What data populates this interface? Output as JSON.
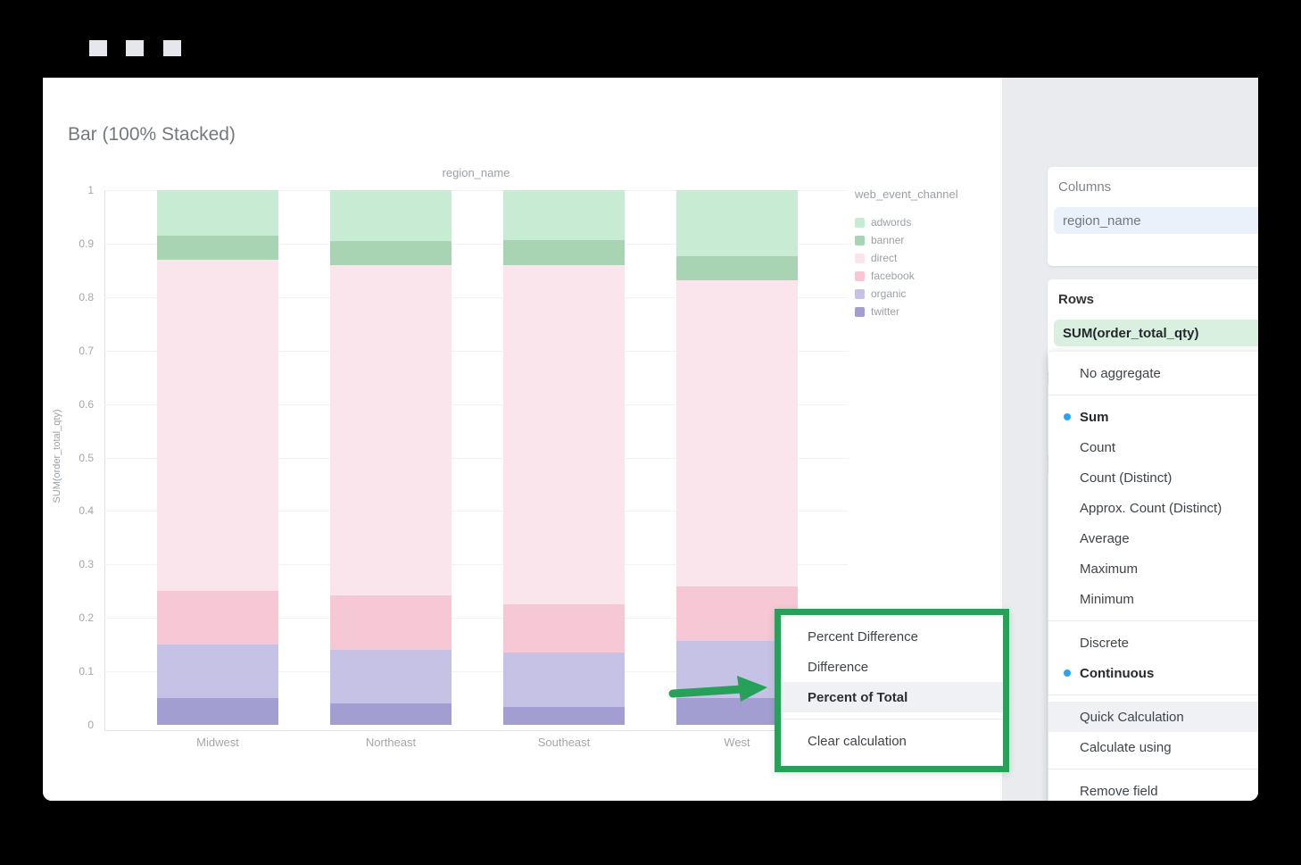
{
  "window": {
    "controls": [
      "square",
      "square",
      "square"
    ]
  },
  "chart_data": {
    "type": "bar",
    "stacked": true,
    "normalized": true,
    "title": "Bar (100% Stacked)",
    "plot_title": "region_name",
    "xlabel": "region_name",
    "ylabel": "SUM(order_total_qty)",
    "categories": [
      "Midwest",
      "Northeast",
      "Southeast",
      "West"
    ],
    "y_ticks": [
      0,
      0.1,
      0.2,
      0.3,
      0.4,
      0.5,
      0.6,
      0.7,
      0.8,
      0.9,
      1
    ],
    "y_tick_labels": [
      "0",
      "0.1",
      "0.2",
      "0.3",
      "0.4",
      "0.5",
      "0.6",
      "0.7",
      "0.8",
      "0.9",
      "1"
    ],
    "ylim": [
      0,
      1
    ],
    "grid": true,
    "legend_position": "right",
    "legend_title": "web_event_channel",
    "series": [
      {
        "name": "adwords",
        "color": "#c8ecd3",
        "values": [
          0.085,
          0.095,
          0.094,
          0.124
        ]
      },
      {
        "name": "banner",
        "color": "#a9d4b4",
        "values": [
          0.045,
          0.045,
          0.046,
          0.044
        ]
      },
      {
        "name": "direct",
        "color": "#fbe5ec",
        "values": [
          0.62,
          0.618,
          0.635,
          0.573
        ]
      },
      {
        "name": "facebook",
        "color": "#f6c7d4",
        "values": [
          0.1,
          0.102,
          0.09,
          0.102
        ]
      },
      {
        "name": "organic",
        "color": "#c6c2e6",
        "values": [
          0.1,
          0.1,
          0.102,
          0.107
        ]
      },
      {
        "name": "twitter",
        "color": "#a39ed1",
        "values": [
          0.05,
          0.04,
          0.033,
          0.05
        ]
      }
    ]
  },
  "sidebar": {
    "columns_section": {
      "label": "Columns",
      "field_value": "region_name"
    },
    "rows_section": {
      "label": "Rows",
      "field_value": "SUM(order_total_qty)"
    },
    "aggregate_menu": {
      "groups": [
        {
          "items": [
            {
              "label": "No aggregate"
            }
          ]
        },
        {
          "items": [
            {
              "label": "Sum",
              "selected": true
            },
            {
              "label": "Count"
            },
            {
              "label": "Count (Distinct)"
            },
            {
              "label": "Approx. Count (Distinct)"
            },
            {
              "label": "Average"
            },
            {
              "label": "Maximum"
            },
            {
              "label": "Minimum"
            }
          ]
        },
        {
          "items": [
            {
              "label": "Discrete"
            },
            {
              "label": "Continuous",
              "selected": true
            }
          ]
        },
        {
          "items": [
            {
              "label": "Quick Calculation",
              "has_submenu": true,
              "highlighted": true
            },
            {
              "label": "Calculate using",
              "has_submenu": true
            }
          ]
        },
        {
          "items": [
            {
              "label": "Remove field"
            }
          ]
        }
      ]
    },
    "quick_calc_submenu": {
      "groups": [
        {
          "items": [
            {
              "label": "Percent Difference"
            },
            {
              "label": "Difference"
            },
            {
              "label": "Percent of Total",
              "highlighted": true
            }
          ]
        },
        {
          "items": [
            {
              "label": "Clear calculation"
            }
          ]
        }
      ]
    }
  },
  "colors": {
    "page_background": "#000000",
    "content_background": "#ffffff",
    "sidebar_background": "#e9ebef",
    "columns_field_bg": "#e9f1fb",
    "columns_field_caret": "#64a2e2",
    "rows_field_bg": "#d9efdf",
    "rows_field_caret": "#3f9e5f",
    "selected_dot_blue": "#29a3f4",
    "menu_highlight": "#f0f1f4",
    "annotation_green": "#27a05a"
  }
}
